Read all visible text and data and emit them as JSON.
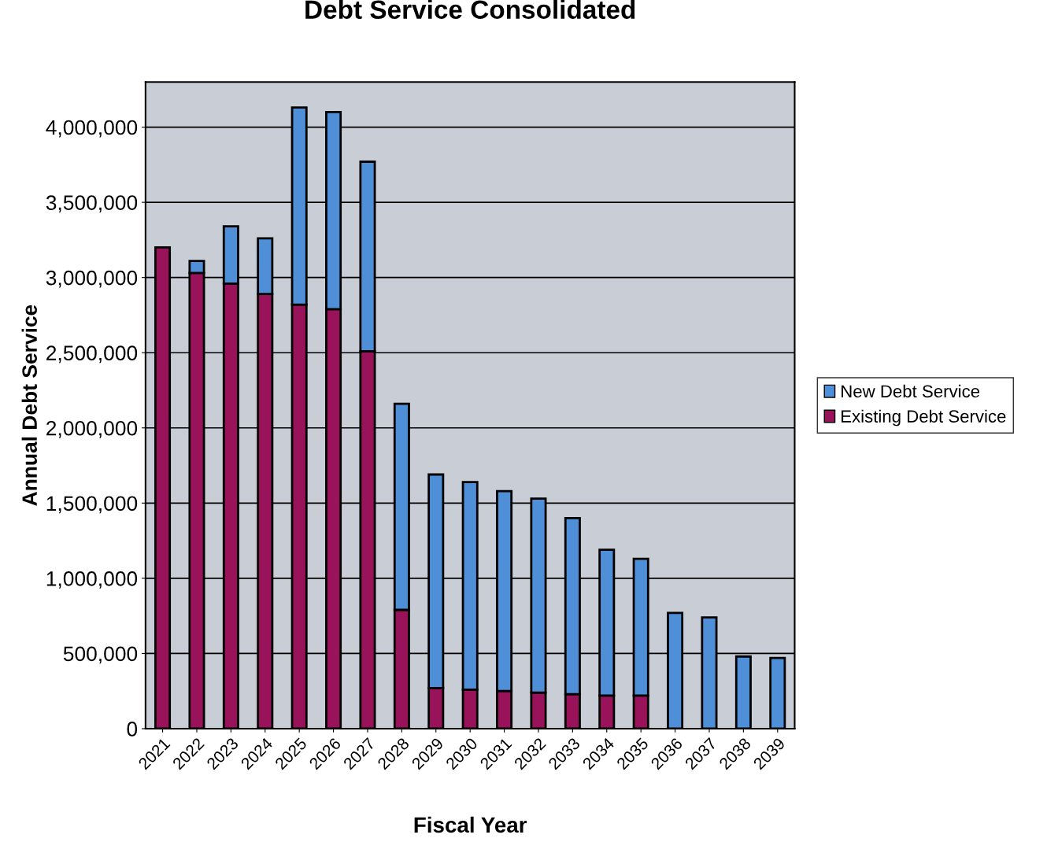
{
  "chart_data": {
    "type": "bar",
    "title": "Debt Service Consolidated",
    "xlabel": "Fiscal Year",
    "ylabel": "Annual Debt Service",
    "categories": [
      "2021",
      "2022",
      "2023",
      "2024",
      "2025",
      "2026",
      "2027",
      "2028",
      "2029",
      "2030",
      "2031",
      "2032",
      "2033",
      "2034",
      "2035",
      "2036",
      "2037",
      "2038",
      "2039"
    ],
    "stacked": true,
    "series": [
      {
        "name": "Existing Debt Service",
        "color": "#99135a",
        "values": [
          3200000,
          3030000,
          2960000,
          2890000,
          2820000,
          2790000,
          2510000,
          790000,
          270000,
          260000,
          250000,
          240000,
          230000,
          220000,
          220000,
          null,
          null,
          null,
          null
        ]
      },
      {
        "name": "New Debt Service",
        "color": "#4f8fd8",
        "values": [
          null,
          80000,
          380000,
          370000,
          1310000,
          1310000,
          1260000,
          1370000,
          1420000,
          1380000,
          1330000,
          1290000,
          1170000,
          970000,
          910000,
          770000,
          740000,
          480000,
          470000
        ]
      }
    ],
    "ylim": [
      0,
      4300000
    ],
    "yticks": [
      {
        "value": 0,
        "label": "0"
      },
      {
        "value": 500000,
        "label": "500,000"
      },
      {
        "value": 1000000,
        "label": "1,000,000"
      },
      {
        "value": 1500000,
        "label": "1,500,000"
      },
      {
        "value": 2000000,
        "label": "2,000,000"
      },
      {
        "value": 2500000,
        "label": "2,500,000"
      },
      {
        "value": 3000000,
        "label": "3,000,000"
      },
      {
        "value": 3500000,
        "label": "3,500,000"
      },
      {
        "value": 4000000,
        "label": "4,000,000"
      }
    ],
    "grid": "y",
    "legend": "right"
  }
}
